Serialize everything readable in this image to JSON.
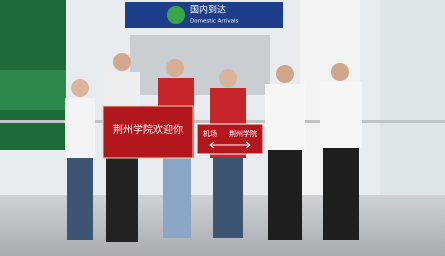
{
  "signage": {
    "chinese": "国内到达",
    "english": "Domestic Arrivals"
  },
  "banners": [
    {
      "text": "荆州学院欢迎你"
    },
    {
      "left": "机场",
      "right": "荆州学院"
    }
  ]
}
